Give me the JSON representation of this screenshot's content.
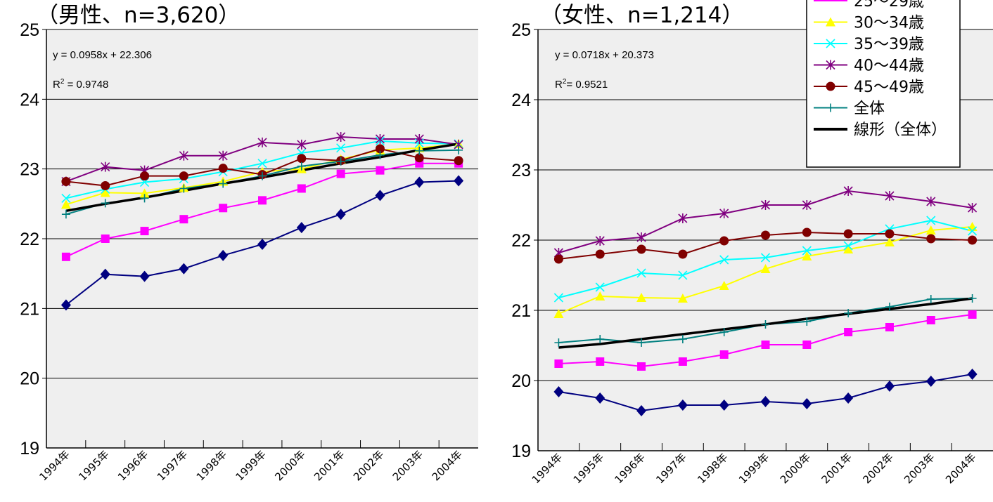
{
  "chart_data": [
    {
      "type": "line",
      "title": "（男性、n=3,620）",
      "categories": [
        "1994年",
        "1995年",
        "1996年",
        "1997年",
        "1998年",
        "1999年",
        "2000年",
        "2001年",
        "2002年",
        "2003年",
        "2004年"
      ],
      "ylim": [
        19,
        25
      ],
      "yticks": [
        "19",
        "20",
        "21",
        "22",
        "23",
        "24",
        "25"
      ],
      "grid": true,
      "annotations": {
        "equation": "y = 0.0958x + 22.306",
        "r2_prefix": "R",
        "r2_sup": "2",
        "r2_value": " = 0.9748"
      },
      "series": [
        {
          "values": [
            21.05,
            21.49,
            21.46,
            21.57,
            21.76,
            21.92,
            22.16,
            22.35,
            22.62,
            22.81,
            22.83
          ]
        },
        {
          "values": [
            21.74,
            22.0,
            22.11,
            22.28,
            22.44,
            22.55,
            22.72,
            22.93,
            22.98,
            23.08,
            23.08
          ]
        },
        {
          "values": [
            22.49,
            22.66,
            22.65,
            22.73,
            22.82,
            22.96,
            23.0,
            23.14,
            23.27,
            23.3,
            23.36
          ]
        },
        {
          "values": [
            22.58,
            22.71,
            22.81,
            22.86,
            22.96,
            23.08,
            23.23,
            23.3,
            23.4,
            23.37,
            23.36
          ]
        },
        {
          "values": [
            22.82,
            23.03,
            22.98,
            23.19,
            23.19,
            23.38,
            23.35,
            23.46,
            23.43,
            23.43,
            23.35
          ]
        },
        {
          "values": [
            22.82,
            22.76,
            22.9,
            22.9,
            23.01,
            22.92,
            23.15,
            23.12,
            23.29,
            23.16,
            23.12
          ]
        },
        {
          "name": "全体",
          "values": [
            22.35,
            22.51,
            22.58,
            22.72,
            22.79,
            22.9,
            23.04,
            23.11,
            23.2,
            23.26,
            23.27
          ]
        },
        {
          "name": "線形（全体）",
          "values": [
            22.4,
            22.5,
            22.59,
            22.69,
            22.79,
            22.88,
            22.98,
            23.08,
            23.17,
            23.27,
            23.36
          ]
        }
      ]
    },
    {
      "type": "line",
      "title": "（女性、n=1,214）",
      "categories": [
        "1994年",
        "1995年",
        "1996年",
        "1997年",
        "1998年",
        "1999年",
        "2000年",
        "2001年",
        "2002年",
        "2003年",
        "2004年"
      ],
      "ylim": [
        19,
        25
      ],
      "yticks": [
        "19",
        "20",
        "21",
        "22",
        "23",
        "24",
        "25"
      ],
      "grid": true,
      "annotations": {
        "equation": "y = 0.0718x + 20.373",
        "r2_prefix": "R",
        "r2_sup": "2",
        "r2_value": "= 0.9521"
      },
      "legend": {
        "position": "top-right",
        "partial_top": "25～29歳"
      },
      "series": [
        {
          "values": [
            19.84,
            19.75,
            19.57,
            19.65,
            19.65,
            19.7,
            19.67,
            19.75,
            19.92,
            19.99,
            20.09
          ]
        },
        {
          "values": [
            20.24,
            20.27,
            20.2,
            20.27,
            20.37,
            20.51,
            20.51,
            20.69,
            20.76,
            20.86,
            20.94
          ]
        },
        {
          "name": "30～34歳",
          "values": [
            20.95,
            21.2,
            21.18,
            21.17,
            21.35,
            21.59,
            21.77,
            21.87,
            21.97,
            22.14,
            22.19
          ]
        },
        {
          "name": "35～39歳",
          "values": [
            21.18,
            21.33,
            21.53,
            21.5,
            21.72,
            21.75,
            21.85,
            21.92,
            22.16,
            22.28,
            22.13
          ]
        },
        {
          "name": "40～44歳",
          "values": [
            21.82,
            21.99,
            22.04,
            22.31,
            22.38,
            22.5,
            22.5,
            22.7,
            22.63,
            22.55,
            22.46
          ]
        },
        {
          "name": "45～49歳",
          "values": [
            21.73,
            21.8,
            21.87,
            21.8,
            21.99,
            22.07,
            22.11,
            22.09,
            22.09,
            22.02,
            22.0
          ]
        },
        {
          "name": "全体",
          "values": [
            20.54,
            20.59,
            20.54,
            20.59,
            20.69,
            20.8,
            20.84,
            20.96,
            21.05,
            21.16,
            21.17
          ]
        },
        {
          "name": "線形（全体）",
          "values": [
            20.47,
            20.52,
            20.59,
            20.66,
            20.73,
            20.8,
            20.88,
            20.95,
            21.02,
            21.09,
            21.17
          ]
        }
      ]
    }
  ],
  "colors": {
    "plot_background": "#efefef",
    "gridline": "#000000",
    "series": [
      "#000080",
      "#ff00ff",
      "#ffff00",
      "#00ffff",
      "#800080",
      "#800000",
      "#008080",
      "#000000"
    ]
  }
}
